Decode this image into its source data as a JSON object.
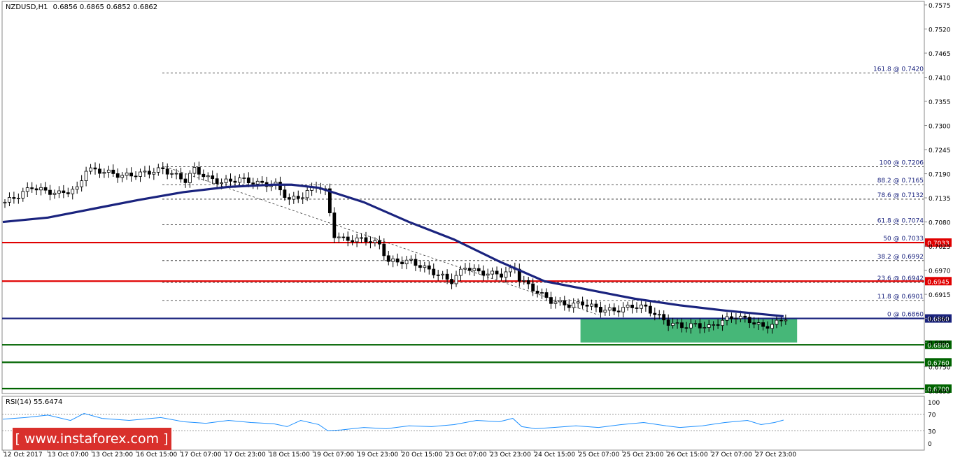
{
  "header": {
    "symbol_label": "NZDUSD,H1",
    "ohlc": "0.6856 0.6865 0.6852 0.6862"
  },
  "watermark": {
    "brand": "[ www.instaforex.com ]"
  },
  "colors": {
    "background": "#ffffff",
    "ma_line": "#1a237e",
    "resistance": "#e00000",
    "support": "#006400",
    "current_line": "#1a237e",
    "zone_fill": "#3cb371",
    "rsi_line": "#1e90ff",
    "axis_text": "#000000",
    "fib_text": "#1a237e",
    "watermark_bg": "#d9302c"
  },
  "chart_data": {
    "type": "candlestick",
    "title": "NZDUSD,H1",
    "price_axis": {
      "min": 0.67,
      "max": 0.7575,
      "ticks": [
        "0.7575",
        "0.7520",
        "0.7465",
        "0.7410",
        "0.7355",
        "0.7300",
        "0.7245",
        "0.7190",
        "0.7135",
        "0.7080",
        "0.7025",
        "0.6970",
        "0.6915",
        "0.6860",
        "0.6805",
        "0.6750",
        "0.6695"
      ]
    },
    "time_axis": {
      "labels": [
        "12 Oct 2017",
        "13 Oct 07:00",
        "13 Oct 23:00",
        "16 Oct 15:00",
        "17 Oct 07:00",
        "17 Oct 23:00",
        "18 Oct 15:00",
        "19 Oct 07:00",
        "19 Oct 23:00",
        "20 Oct 15:00",
        "23 Oct 07:00",
        "23 Oct 23:00",
        "24 Oct 15:00",
        "25 Oct 07:00",
        "25 Oct 23:00",
        "26 Oct 15:00",
        "27 Oct 07:00",
        "27 Oct 23:00"
      ]
    },
    "close_path": [
      [
        0,
        0.7125
      ],
      [
        3,
        0.714
      ],
      [
        6,
        0.716
      ],
      [
        9,
        0.715
      ],
      [
        12,
        0.7145
      ],
      [
        16,
        0.7155
      ],
      [
        18,
        0.72
      ],
      [
        22,
        0.7195
      ],
      [
        26,
        0.7185
      ],
      [
        30,
        0.719
      ],
      [
        35,
        0.72
      ],
      [
        38,
        0.7185
      ],
      [
        40,
        0.7175
      ],
      [
        42,
        0.72
      ],
      [
        45,
        0.718
      ],
      [
        48,
        0.717
      ],
      [
        52,
        0.7178
      ],
      [
        56,
        0.7168
      ],
      [
        60,
        0.7165
      ],
      [
        63,
        0.713
      ],
      [
        66,
        0.714
      ],
      [
        69,
        0.7163
      ],
      [
        71,
        0.715
      ],
      [
        72,
        0.71
      ],
      [
        73,
        0.705
      ],
      [
        75,
        0.704
      ],
      [
        80,
        0.704
      ],
      [
        83,
        0.7028
      ],
      [
        85,
        0.699
      ],
      [
        90,
        0.699
      ],
      [
        93,
        0.6975
      ],
      [
        96,
        0.696
      ],
      [
        99,
        0.6945
      ],
      [
        102,
        0.6978
      ],
      [
        105,
        0.6965
      ],
      [
        110,
        0.696
      ],
      [
        113,
        0.6975
      ],
      [
        114,
        0.695
      ],
      [
        118,
        0.692
      ],
      [
        121,
        0.69
      ],
      [
        125,
        0.689
      ],
      [
        128,
        0.6895
      ],
      [
        132,
        0.688
      ],
      [
        135,
        0.6878
      ],
      [
        139,
        0.6888
      ],
      [
        142,
        0.6885
      ],
      [
        144,
        0.687
      ],
      [
        147,
        0.685
      ],
      [
        150,
        0.6842
      ],
      [
        153,
        0.6845
      ],
      [
        156,
        0.684
      ],
      [
        159,
        0.6855
      ],
      [
        162,
        0.6865
      ],
      [
        165,
        0.6855
      ],
      [
        168,
        0.684
      ],
      [
        171,
        0.685
      ],
      [
        173,
        0.6862
      ]
    ],
    "ma_path": [
      [
        0,
        0.708
      ],
      [
        10,
        0.709
      ],
      [
        20,
        0.711
      ],
      [
        30,
        0.713
      ],
      [
        40,
        0.7148
      ],
      [
        50,
        0.716
      ],
      [
        60,
        0.7165
      ],
      [
        64,
        0.7165
      ],
      [
        70,
        0.7158
      ],
      [
        80,
        0.7125
      ],
      [
        90,
        0.708
      ],
      [
        100,
        0.704
      ],
      [
        110,
        0.699
      ],
      [
        120,
        0.6945
      ],
      [
        130,
        0.6925
      ],
      [
        140,
        0.6905
      ],
      [
        150,
        0.689
      ],
      [
        160,
        0.6878
      ],
      [
        170,
        0.6868
      ],
      [
        173,
        0.6865
      ]
    ],
    "fib_levels": [
      {
        "label": "161.8 @ 0.7420",
        "price": 0.742
      },
      {
        "label": "100 @ 0.7206",
        "price": 0.7206
      },
      {
        "label": "88.2 @ 0.7165",
        "price": 0.7165
      },
      {
        "label": "78.6 @ 0.7132",
        "price": 0.7132
      },
      {
        "label": "61.8 @ 0.7074",
        "price": 0.7074
      },
      {
        "label": "50 @ 0.7033",
        "price": 0.7033
      },
      {
        "label": "38.2 @ 0.6992",
        "price": 0.6992
      },
      {
        "label": "23.6 @ 0.6942",
        "price": 0.6942
      },
      {
        "label": "11.8 @ 0.6901",
        "price": 0.6901
      },
      {
        "label": "0 @ 0.6860",
        "price": 0.686
      }
    ],
    "horizontal_levels": [
      {
        "label": "0.7033",
        "price": 0.7033,
        "kind": "resistance"
      },
      {
        "label": "0.6945",
        "price": 0.6945,
        "kind": "resistance"
      },
      {
        "label": "0.6860",
        "price": 0.686,
        "kind": "current"
      },
      {
        "label": "0.6800",
        "price": 0.68,
        "kind": "support"
      },
      {
        "label": "0.6760",
        "price": 0.676,
        "kind": "support"
      },
      {
        "label": "0.6700",
        "price": 0.67,
        "kind": "support"
      }
    ],
    "zone": {
      "price_top": 0.686,
      "price_bottom": 0.6805,
      "bar_start": 128,
      "bar_end": 176
    },
    "trendline": {
      "from": [
        36,
        0.7206
      ],
      "to": [
        132,
        0.6868
      ]
    },
    "rsi": {
      "label": "RSI(14) 55.6474",
      "value": 55.6474,
      "range": [
        0,
        100
      ],
      "levels": [
        70,
        30
      ],
      "ticks": [
        "100",
        "70",
        "30",
        "0"
      ],
      "path": [
        [
          0,
          58
        ],
        [
          5,
          62
        ],
        [
          10,
          68
        ],
        [
          15,
          55
        ],
        [
          18,
          72
        ],
        [
          22,
          60
        ],
        [
          28,
          55
        ],
        [
          35,
          62
        ],
        [
          40,
          52
        ],
        [
          45,
          48
        ],
        [
          50,
          55
        ],
        [
          55,
          50
        ],
        [
          60,
          47
        ],
        [
          63,
          40
        ],
        [
          66,
          55
        ],
        [
          70,
          45
        ],
        [
          72,
          30
        ],
        [
          75,
          32
        ],
        [
          80,
          38
        ],
        [
          85,
          35
        ],
        [
          90,
          42
        ],
        [
          95,
          40
        ],
        [
          100,
          45
        ],
        [
          105,
          55
        ],
        [
          110,
          52
        ],
        [
          113,
          60
        ],
        [
          115,
          40
        ],
        [
          118,
          35
        ],
        [
          122,
          38
        ],
        [
          127,
          42
        ],
        [
          132,
          38
        ],
        [
          137,
          45
        ],
        [
          142,
          50
        ],
        [
          147,
          42
        ],
        [
          150,
          38
        ],
        [
          155,
          42
        ],
        [
          160,
          50
        ],
        [
          165,
          55
        ],
        [
          168,
          45
        ],
        [
          171,
          50
        ],
        [
          173,
          56
        ]
      ]
    }
  }
}
